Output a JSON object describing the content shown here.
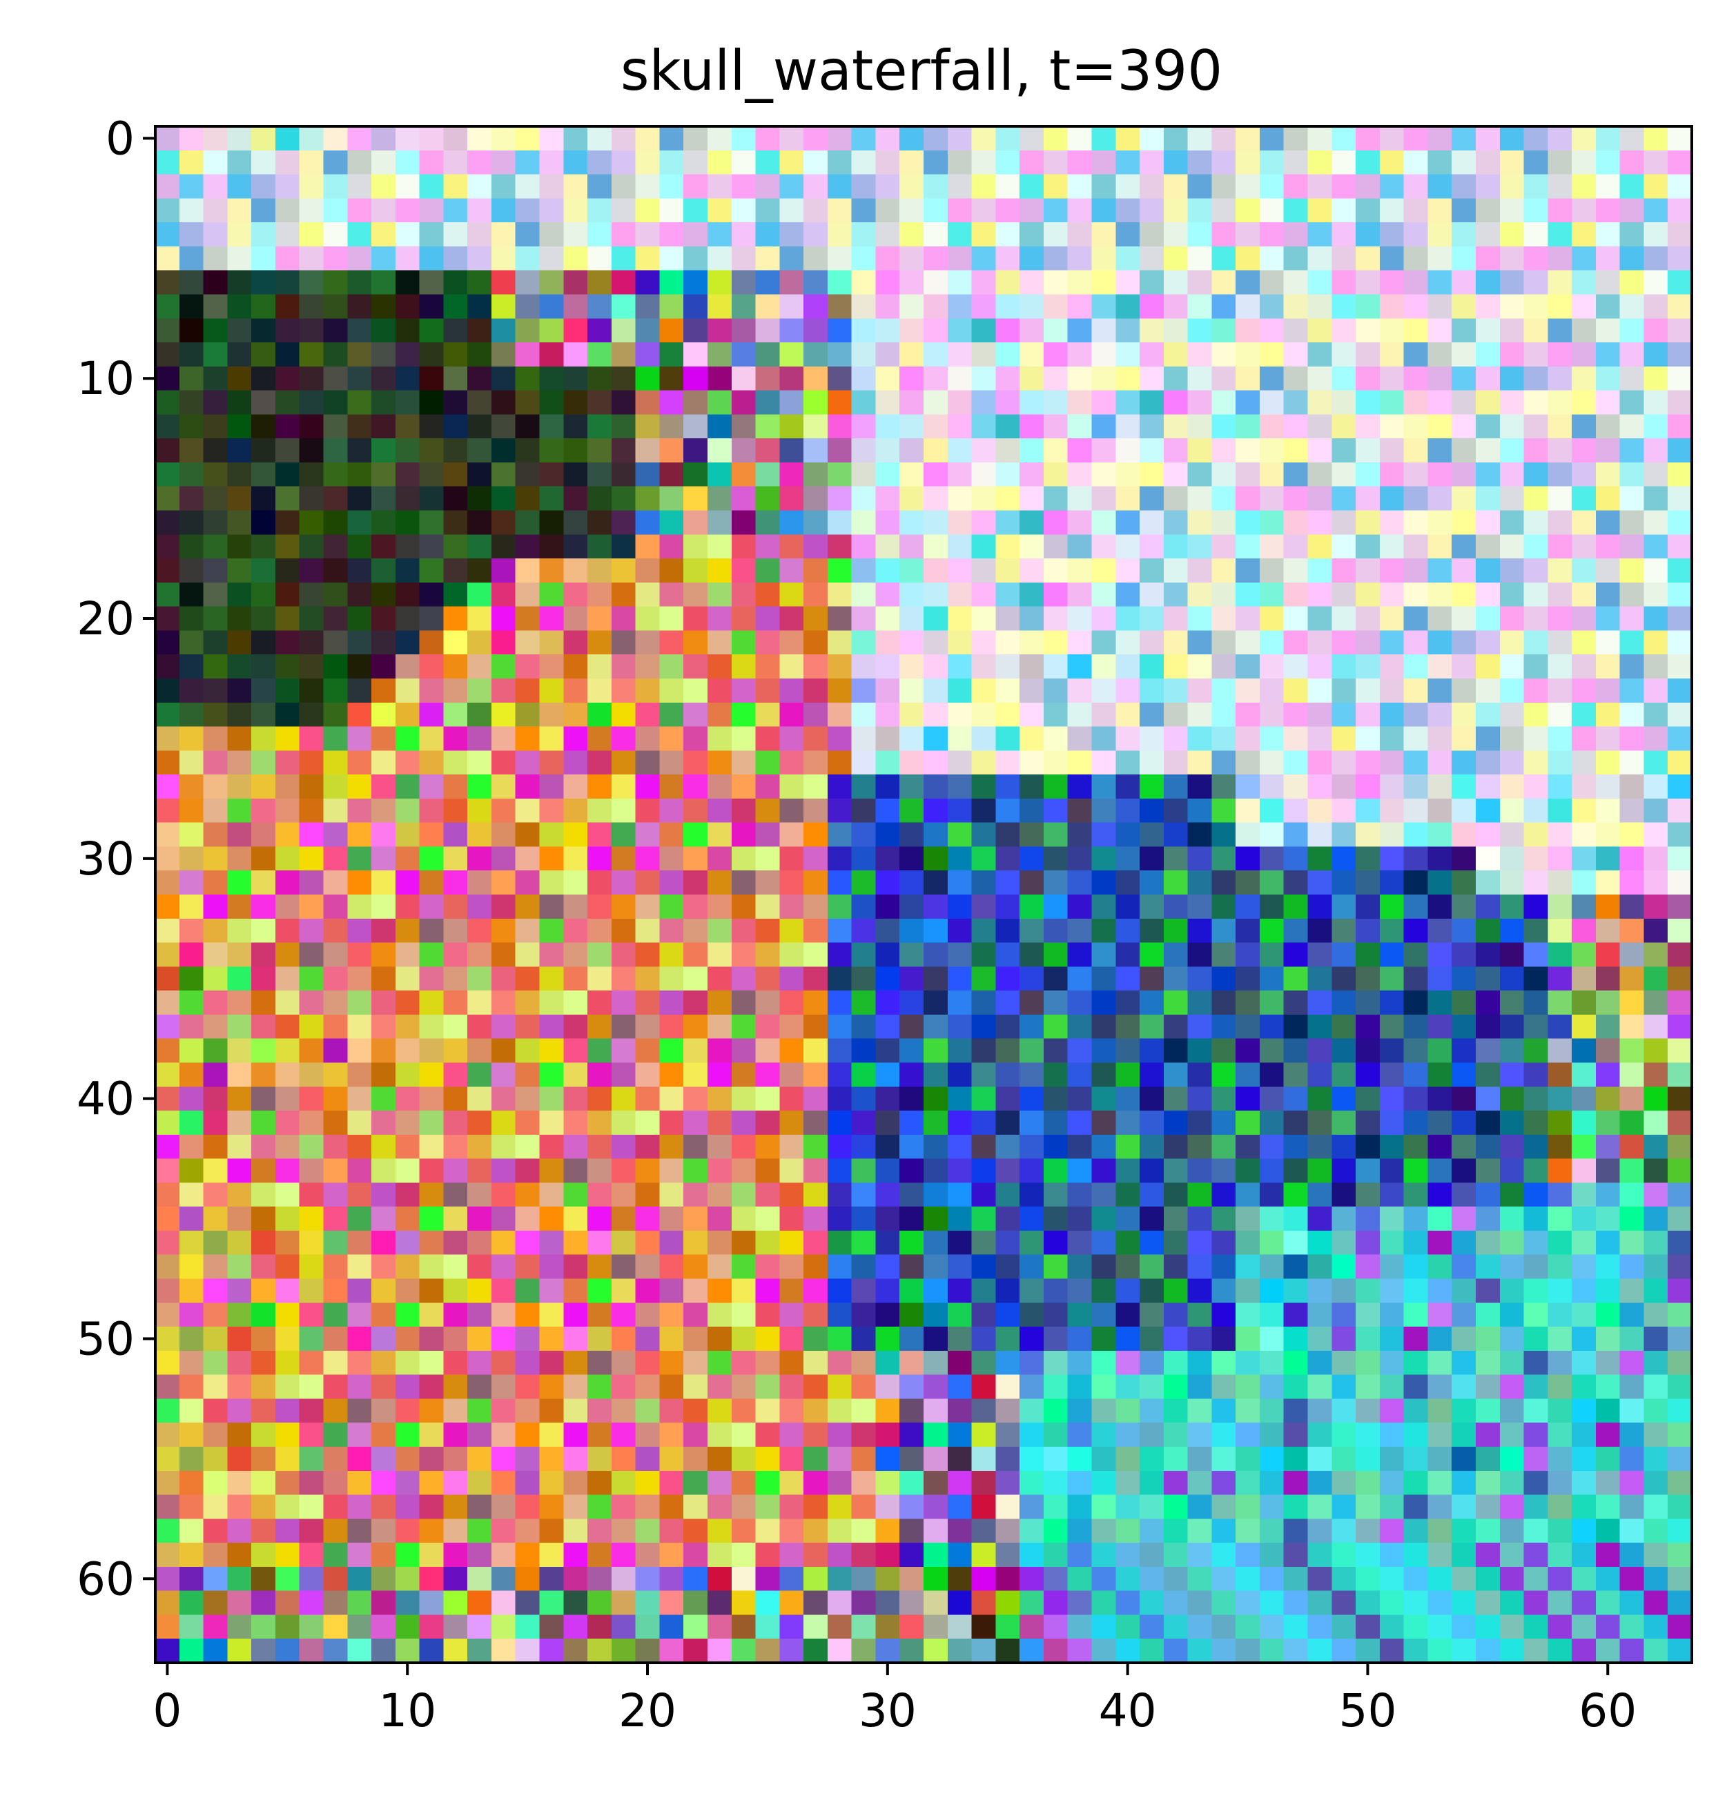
{
  "figure": {
    "title": "skull_waterfall, t=390",
    "background": "#ffffff"
  },
  "image": {
    "grid_size": [
      64,
      64
    ],
    "x_range": [
      -0.5,
      63.5
    ],
    "y_range": [
      63.5,
      -0.5
    ],
    "origin": "upper",
    "pixels": "random RGB noise with regional tints",
    "regions": [
      {
        "name": "top-bright-pastel",
        "description": "light pastel noise across top and right"
      },
      {
        "name": "left-dark",
        "description": "dark greens and blacks at left rows 6-25"
      },
      {
        "name": "lower-left-warm",
        "description": "warm oranges, reds and yellows rows 25-60, cols 0-28"
      },
      {
        "name": "right-dark-blue",
        "description": "dark blues and greens rows 27-50, cols 28-56"
      },
      {
        "name": "bottom-right-cyan",
        "description": "teal, cyan and green rows 45-63, cols 40-63"
      }
    ]
  },
  "axes": {
    "x": {
      "ticks": [
        0,
        10,
        20,
        30,
        40,
        50,
        60
      ],
      "tick_labels": [
        "0",
        "10",
        "20",
        "30",
        "40",
        "50",
        "60"
      ]
    },
    "y": {
      "ticks": [
        0,
        10,
        20,
        30,
        40,
        50,
        60
      ],
      "tick_labels": [
        "0",
        "10",
        "20",
        "30",
        "40",
        "50",
        "60"
      ]
    }
  }
}
